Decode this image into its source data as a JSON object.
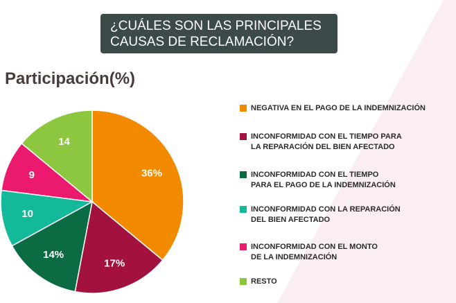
{
  "chart_data": {
    "type": "pie",
    "title": "¿CUÁLES SON LAS PRINCIPALES\nCAUSAS DE RECLAMACIÓN?",
    "subtitle": "Participación(%)",
    "categories": [
      "NEGATIVA EN EL PAGO DE LA INDEMNIZACIÓN",
      "INCONFORMIDAD CON EL TIEMPO PARA\nLA REPARACIÓN DEL BIEN AFECTADO",
      "INCONFORMIDAD CON EL TIEMPO\nPARA EL PAGO DE LA INDEMNIZACIÓN",
      "INCONFORMIDAD CON LA REPARACIÓN\nDEL BIEN AFECTADO",
      "INCONFORMIDAD CON EL MONTO\nDE LA INDEMNIZACIÓN",
      "RESTO"
    ],
    "values": [
      36,
      17,
      14,
      10,
      9,
      14
    ],
    "value_labels": [
      "36%",
      "17%",
      "14%",
      "10",
      "9",
      "14"
    ],
    "colors": [
      "#f28a00",
      "#a3113f",
      "#0b6b43",
      "#13b998",
      "#ec1a6f",
      "#8dc63f"
    ]
  }
}
